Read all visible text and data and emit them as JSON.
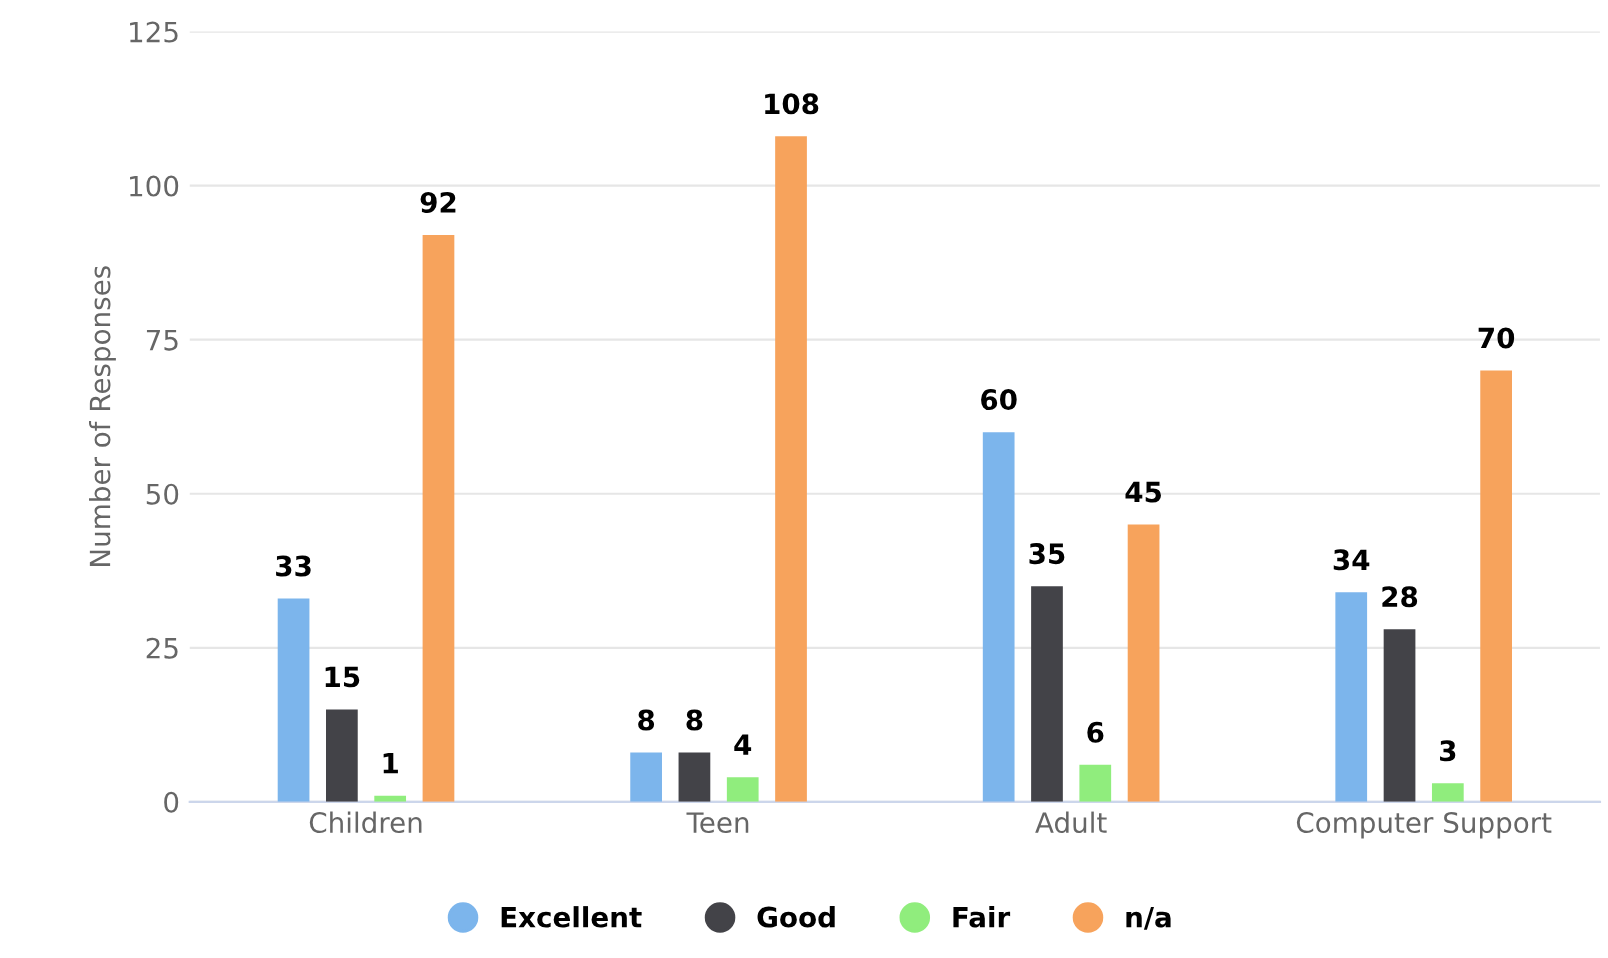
{
  "chart_data": {
    "type": "bar",
    "ylabel": "Number of Responses",
    "categories": [
      "Children",
      "Teen",
      "Adult",
      "Computer Support"
    ],
    "series": [
      {
        "name": "Excellent",
        "color": "#7cb5ec",
        "values": [
          33,
          8,
          60,
          34
        ]
      },
      {
        "name": "Good",
        "color": "#434348",
        "values": [
          15,
          8,
          35,
          28
        ]
      },
      {
        "name": "Fair",
        "color": "#90ed7d",
        "values": [
          1,
          4,
          6,
          3
        ]
      },
      {
        "name": "n/a",
        "color": "#f7a35c",
        "values": [
          92,
          108,
          45,
          70
        ]
      }
    ],
    "ylim": [
      0,
      125
    ],
    "yticks": [
      0,
      25,
      50,
      75,
      100,
      125
    ],
    "grid": "y",
    "legend": "bottom",
    "data_labels": true
  }
}
